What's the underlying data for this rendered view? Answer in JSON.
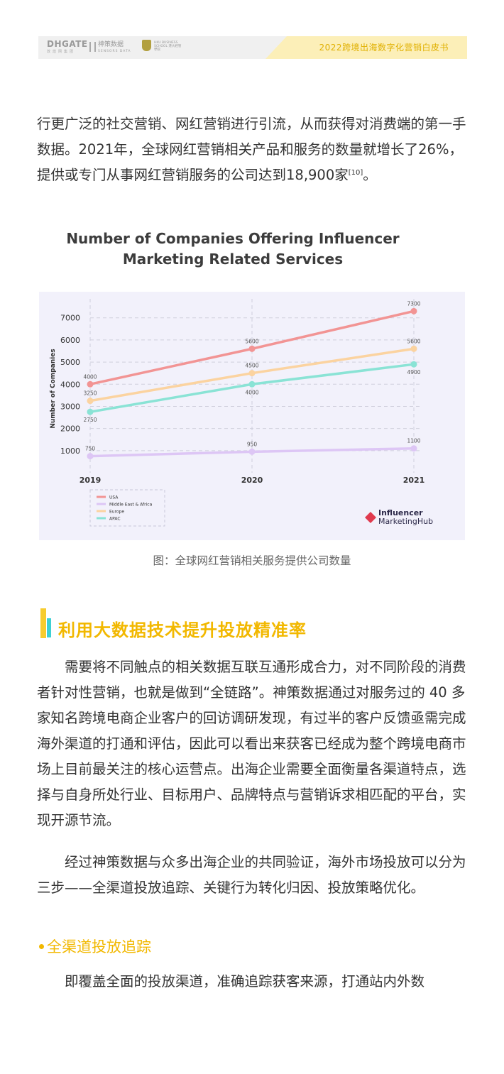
{
  "header": {
    "logo_dhgate": "DHGATE",
    "logo_dhgate_sub": "敦煌网集团",
    "logo_sensors": "神策数据",
    "logo_sensors_sub": "SENSORS DATA",
    "logo_hku": "HKU BUSINESS SCHOOL 港大經管學院",
    "title": "2022跨境出海数字化营销白皮书"
  },
  "intro": {
    "text": "行更广泛的社交营销、网红营销进行引流，从而获得对消费端的第一手数据。2021年，全球网红营销相关产品和服务的数量就增长了26%，提供或专门从事网红营销服务的公司达到18,900家",
    "ref": "[10]",
    "end": "。"
  },
  "chart_title_line1": "Number of Companies Offering Influencer",
  "chart_title_line2": "Marketing Related Services",
  "chart_data": {
    "type": "line",
    "x": [
      "2019",
      "2020",
      "2021"
    ],
    "ylabel": "Number of Companies",
    "yticks": [
      1000,
      2000,
      3000,
      4000,
      5000,
      6000,
      7000
    ],
    "ylim": [
      0,
      7600
    ],
    "grid": true,
    "legend_position": "bottom-left",
    "series": [
      {
        "name": "USA",
        "color": "#f29494",
        "values": [
          4000,
          5600,
          7300
        ]
      },
      {
        "name": "Middle East & Africa",
        "color": "#ddc6f5",
        "values": [
          750,
          950,
          1100
        ]
      },
      {
        "name": "Europe",
        "color": "#fbd3a0",
        "values": [
          3250,
          4500,
          5600
        ]
      },
      {
        "name": "APAC",
        "color": "#8ae3d5",
        "values": [
          2750,
          4000,
          4900
        ]
      }
    ],
    "source_logo_line1": "Influencer",
    "source_logo_line2": "MarketingHub"
  },
  "caption": "图：全球网红营销相关服务提供公司数量",
  "section": {
    "title": "利用大数据技术提升投放精准率",
    "p1": "需要将不同触点的相关数据互联互通形成合力，对不同阶段的消费者针对性营销，也就是做到“全链路”。神策数据通过对服务过的 40 多家知名跨境电商企业客户的回访调研发现，有过半的客户反馈亟需完成海外渠道的打通和评估，因此可以看出来获客已经成为整个跨境电商市场上目前最关注的核心运营点。出海企业需要全面衡量各渠道特点，选择与自身所处行业、目标用户、品牌特点与营销诉求相匹配的平台，实现开源节流。",
    "p2": "经过神策数据与众多出海企业的共同验证，海外市场投放可以分为三步——全渠道投放追踪、关键行为转化归因、投放策略优化。",
    "subtitle": "全渠道投放追踪",
    "p3": "即覆盖全面的投放渠道，准确追踪获客来源，打通站内外数"
  },
  "colors": {
    "accent_yellow": "#f2b800",
    "accent_cyan": "#3ed0d4",
    "chart_bg": "#f2f1fb"
  }
}
